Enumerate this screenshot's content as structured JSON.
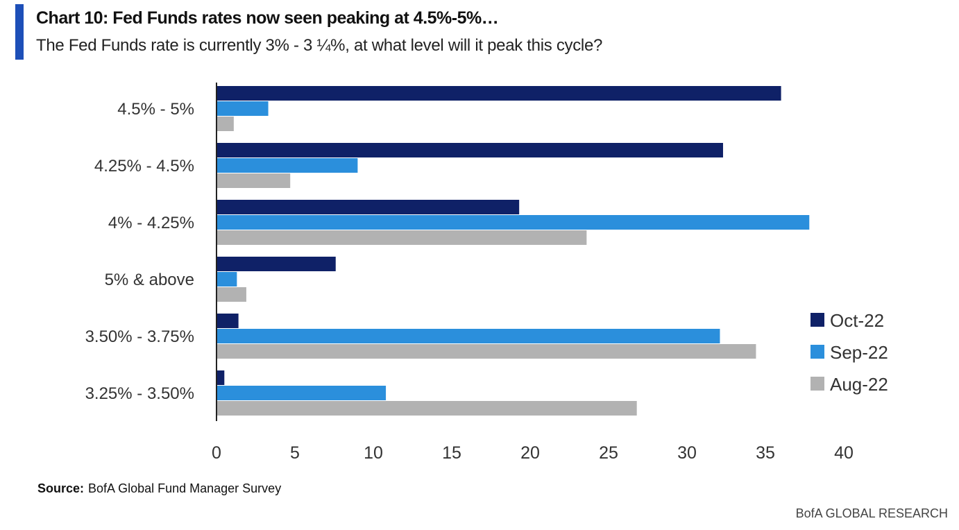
{
  "header": {
    "title": "Chart 10: Fed Funds rates now seen peaking at 4.5%-5%…",
    "subtitle": "The Fed Funds rate is currently 3% - 3 ¼%, at what level will it peak this cycle?",
    "accent_color": "#1d4fb8"
  },
  "chart_data": {
    "type": "bar",
    "orientation": "horizontal",
    "title": "",
    "xlabel": "",
    "ylabel": "",
    "categories": [
      "4.5% - 5%",
      "4.25% - 4.5%",
      "4% - 4.25%",
      "5% & above",
      "3.50% - 3.75%",
      "3.25% - 3.50%"
    ],
    "series": [
      {
        "name": "Oct-22",
        "color": "#0f2167",
        "values": [
          36,
          32.3,
          19.3,
          7.6,
          1.4,
          0.5
        ]
      },
      {
        "name": "Sep-22",
        "color": "#2b8fdc",
        "values": [
          3.3,
          9,
          37.8,
          1.3,
          32.1,
          10.8
        ]
      },
      {
        "name": "Aug-22",
        "color": "#b2b2b2",
        "values": [
          1.1,
          4.7,
          23.6,
          1.9,
          34.4,
          26.8
        ]
      }
    ],
    "xlim": [
      0,
      40
    ],
    "xticks": [
      0,
      5,
      10,
      15,
      20,
      25,
      30,
      35,
      40
    ],
    "grid": false,
    "legend_position": "right"
  },
  "footer": {
    "source_label": "Source:",
    "source_text": "BofA Global Fund Manager Survey",
    "brand": "BofA GLOBAL RESEARCH"
  }
}
